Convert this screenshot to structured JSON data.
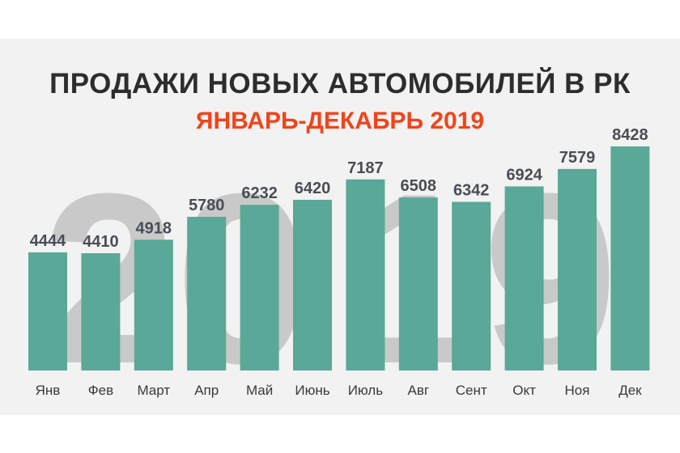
{
  "chart_data": {
    "type": "bar",
    "title": "ПРОДАЖИ НОВЫХ АВТОМОБИЛЕЙ В РК",
    "subtitle": "ЯНВАРЬ-ДЕКАБРЬ 2019",
    "watermark": "2019",
    "categories": [
      "Янв",
      "Фев",
      "Март",
      "Апр",
      "Май",
      "Июнь",
      "Июль",
      "Авг",
      "Сент",
      "Окт",
      "Ноя",
      "Дек"
    ],
    "values": [
      4444,
      4410,
      4918,
      5780,
      6232,
      6420,
      7187,
      6508,
      6342,
      6924,
      7579,
      8428
    ],
    "data_labels": [
      "4444",
      "4410",
      "4918",
      "5780",
      "6232",
      "6420",
      "7187",
      "6508",
      "6342",
      "6924",
      "7579",
      "8428"
    ],
    "ylim": [
      0,
      8428
    ],
    "grid": false,
    "legend": "none",
    "colors": {
      "bar": "#5aa897",
      "title": "#2d2d2d",
      "subtitle": "#f0441b",
      "value_label": "#4a4d55",
      "watermark": "#c9c9c9",
      "background": "#f2f2f2"
    }
  }
}
